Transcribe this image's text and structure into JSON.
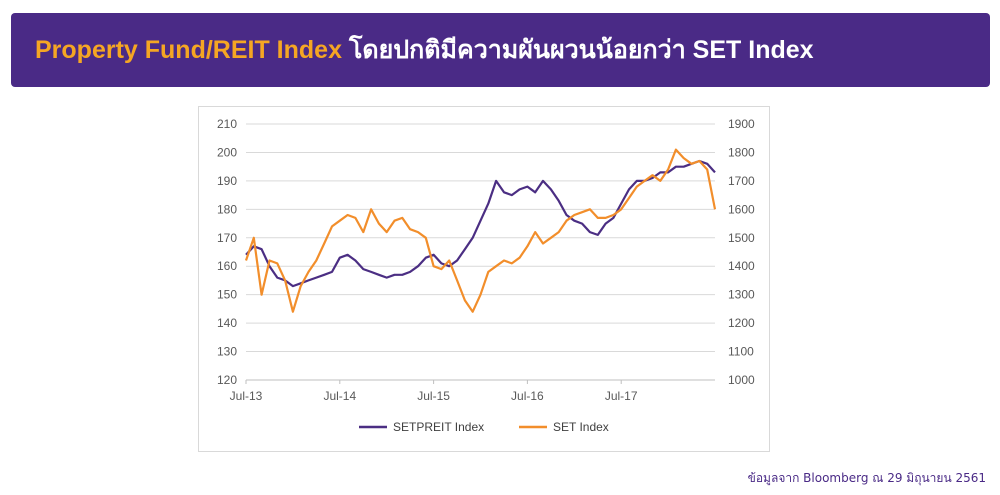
{
  "banner": {
    "title_highlight": "Property Fund/REIT Index",
    "title_rest": "โดยปกติมีความผันผวนน้อยกว่า SET Index",
    "bg_color": "#4a2a86",
    "highlight_color": "#f5a623"
  },
  "source_note": "ข้อมูลจาก Bloomberg ณ 29 มิถุนายน 2561",
  "chart_data": {
    "type": "line",
    "title": "",
    "xlabel": "",
    "ylabel": "",
    "x_ticks": [
      "Jul-13",
      "Jul-14",
      "Jul-15",
      "Jul-16",
      "Jul-17"
    ],
    "y_left": {
      "ticks": [
        120,
        130,
        140,
        150,
        160,
        170,
        180,
        190,
        200,
        210
      ],
      "range": [
        120,
        210
      ]
    },
    "y_right": {
      "ticks": [
        1000,
        1100,
        1200,
        1300,
        1400,
        1500,
        1600,
        1700,
        1800,
        1900
      ],
      "range": [
        1000,
        1900
      ]
    },
    "x_range": [
      0,
      60
    ],
    "grid": true,
    "legend_position": "bottom",
    "series": [
      {
        "name": "SETPREIT Index",
        "color": "#4b2e83",
        "axis": "left",
        "points": [
          [
            0,
            164
          ],
          [
            1,
            167
          ],
          [
            2,
            166
          ],
          [
            3,
            160
          ],
          [
            4,
            156
          ],
          [
            5,
            155
          ],
          [
            6,
            153
          ],
          [
            7,
            154
          ],
          [
            8,
            155
          ],
          [
            9,
            156
          ],
          [
            10,
            157
          ],
          [
            11,
            158
          ],
          [
            12,
            163
          ],
          [
            13,
            164
          ],
          [
            14,
            162
          ],
          [
            15,
            159
          ],
          [
            16,
            158
          ],
          [
            17,
            157
          ],
          [
            18,
            156
          ],
          [
            19,
            157
          ],
          [
            20,
            157
          ],
          [
            21,
            158
          ],
          [
            22,
            160
          ],
          [
            23,
            163
          ],
          [
            24,
            164
          ],
          [
            25,
            161
          ],
          [
            26,
            160
          ],
          [
            27,
            162
          ],
          [
            28,
            166
          ],
          [
            29,
            170
          ],
          [
            30,
            176
          ],
          [
            31,
            182
          ],
          [
            32,
            190
          ],
          [
            33,
            186
          ],
          [
            34,
            185
          ],
          [
            35,
            187
          ],
          [
            36,
            188
          ],
          [
            37,
            186
          ],
          [
            38,
            190
          ],
          [
            39,
            187
          ],
          [
            40,
            183
          ],
          [
            41,
            178
          ],
          [
            42,
            176
          ],
          [
            43,
            175
          ],
          [
            44,
            172
          ],
          [
            45,
            171
          ],
          [
            46,
            175
          ],
          [
            47,
            177
          ],
          [
            48,
            182
          ],
          [
            49,
            187
          ],
          [
            50,
            190
          ],
          [
            51,
            190
          ],
          [
            52,
            191
          ],
          [
            53,
            193
          ],
          [
            54,
            193
          ],
          [
            55,
            195
          ],
          [
            56,
            195
          ],
          [
            57,
            196
          ],
          [
            58,
            197
          ],
          [
            59,
            196
          ],
          [
            60,
            193
          ]
        ]
      },
      {
        "name": "SET Index",
        "color": "#f28e2b",
        "axis": "right",
        "points": [
          [
            0,
            1420
          ],
          [
            1,
            1500
          ],
          [
            2,
            1300
          ],
          [
            3,
            1420
          ],
          [
            4,
            1410
          ],
          [
            5,
            1350
          ],
          [
            6,
            1240
          ],
          [
            7,
            1330
          ],
          [
            8,
            1380
          ],
          [
            9,
            1420
          ],
          [
            10,
            1480
          ],
          [
            11,
            1540
          ],
          [
            12,
            1560
          ],
          [
            13,
            1580
          ],
          [
            14,
            1570
          ],
          [
            15,
            1520
          ],
          [
            16,
            1600
          ],
          [
            17,
            1550
          ],
          [
            18,
            1520
          ],
          [
            19,
            1560
          ],
          [
            20,
            1570
          ],
          [
            21,
            1530
          ],
          [
            22,
            1520
          ],
          [
            23,
            1500
          ],
          [
            24,
            1400
          ],
          [
            25,
            1390
          ],
          [
            26,
            1420
          ],
          [
            27,
            1350
          ],
          [
            28,
            1280
          ],
          [
            29,
            1240
          ],
          [
            30,
            1300
          ],
          [
            31,
            1380
          ],
          [
            32,
            1400
          ],
          [
            33,
            1420
          ],
          [
            34,
            1410
          ],
          [
            35,
            1430
          ],
          [
            36,
            1470
          ],
          [
            37,
            1520
          ],
          [
            38,
            1480
          ],
          [
            39,
            1500
          ],
          [
            40,
            1520
          ],
          [
            41,
            1560
          ],
          [
            42,
            1580
          ],
          [
            43,
            1590
          ],
          [
            44,
            1600
          ],
          [
            45,
            1570
          ],
          [
            46,
            1570
          ],
          [
            47,
            1580
          ],
          [
            48,
            1600
          ],
          [
            49,
            1640
          ],
          [
            50,
            1680
          ],
          [
            51,
            1700
          ],
          [
            52,
            1720
          ],
          [
            53,
            1700
          ],
          [
            54,
            1740
          ],
          [
            55,
            1810
          ],
          [
            56,
            1780
          ],
          [
            57,
            1760
          ],
          [
            58,
            1770
          ],
          [
            59,
            1740
          ],
          [
            60,
            1600
          ]
        ]
      }
    ]
  }
}
